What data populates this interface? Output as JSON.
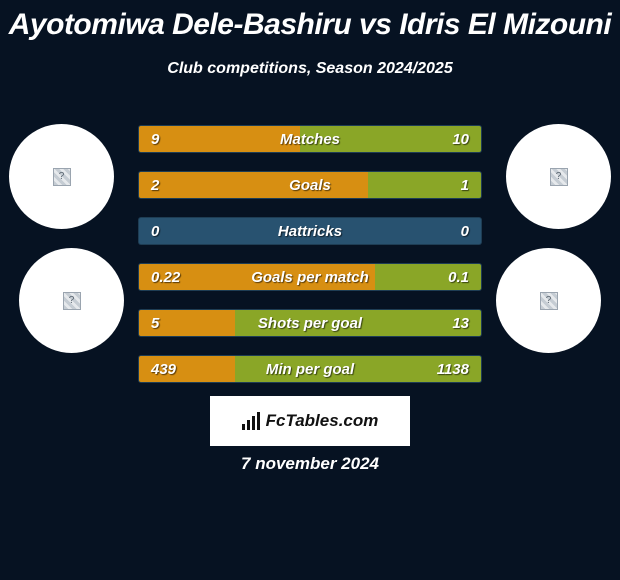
{
  "title": "Ayotomiwa Dele-Bashiru vs Idris El Mizouni",
  "subtitle": "Club competitions, Season 2024/2025",
  "date": "7 november 2024",
  "branding": "FcTables.com",
  "colors": {
    "background": "#061222",
    "left_fill": "#d78f12",
    "right_fill": "#8aa627",
    "neutral_fill": "#285270",
    "text": "#ffffff",
    "avatar_bg": "#ffffff",
    "brand_bg": "#ffffff",
    "brand_text": "#111111"
  },
  "stats": [
    {
      "label": "Matches",
      "left_val": "9",
      "right_val": "10",
      "left_pct": 47,
      "right_pct": 53
    },
    {
      "label": "Goals",
      "left_val": "2",
      "right_val": "1",
      "left_pct": 67,
      "right_pct": 33
    },
    {
      "label": "Hattricks",
      "left_val": "0",
      "right_val": "0",
      "left_pct": 0,
      "right_pct": 0
    },
    {
      "label": "Goals per match",
      "left_val": "0.22",
      "right_val": "0.1",
      "left_pct": 69,
      "right_pct": 31
    },
    {
      "label": "Shots per goal",
      "left_val": "5",
      "right_val": "13",
      "left_pct": 28,
      "right_pct": 72
    },
    {
      "label": "Min per goal",
      "left_val": "439",
      "right_val": "1138",
      "left_pct": 28,
      "right_pct": 72
    }
  ]
}
